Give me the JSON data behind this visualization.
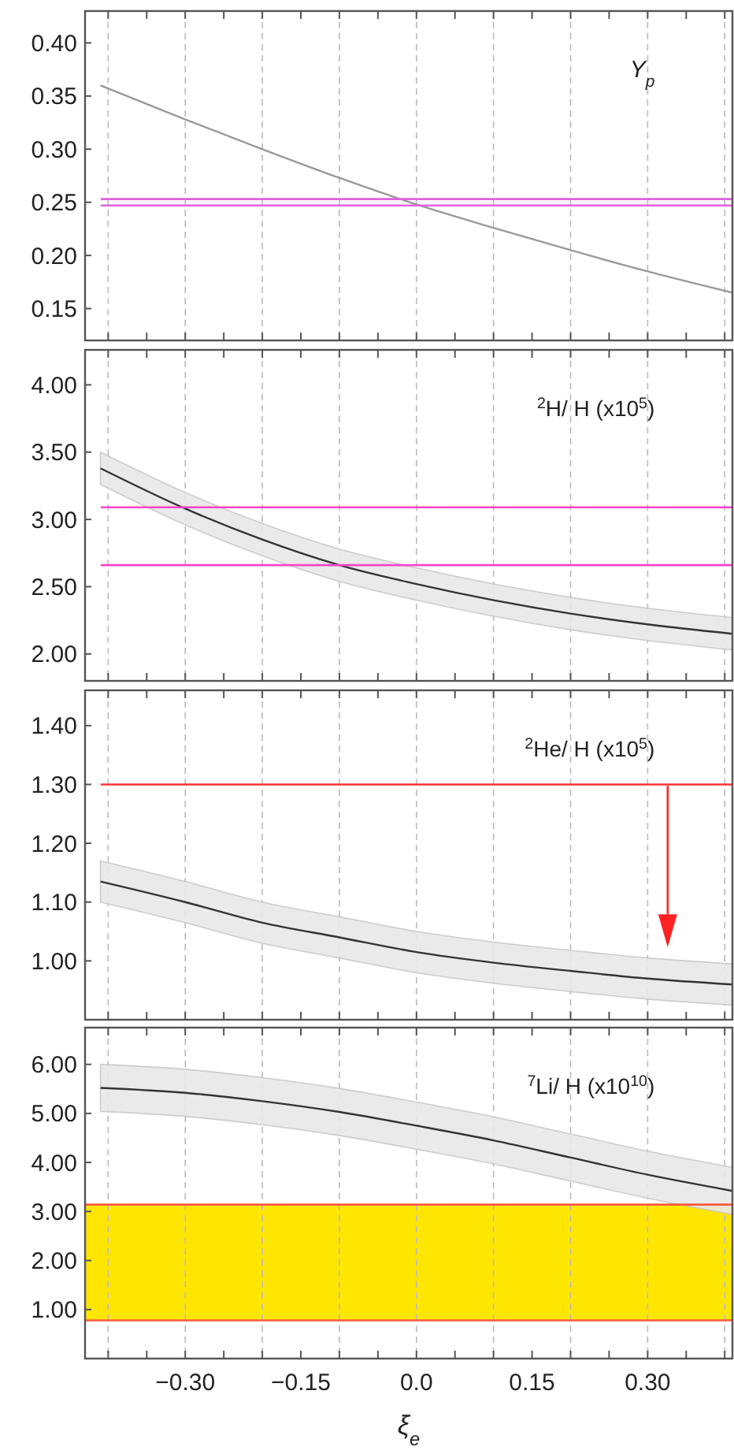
{
  "chart_data": [
    {
      "type": "line",
      "annotations": [
        "Y$_{p}$"
      ],
      "x": [
        -0.41,
        -0.3,
        -0.2,
        -0.1,
        0,
        0.1,
        0.2,
        0.3,
        0.41
      ],
      "series": [
        {
          "color": "#999999",
          "values": [
            0.36,
            0.328,
            0.3,
            0.273,
            0.248,
            0.226,
            0.205,
            0.185,
            0.165
          ]
        }
      ],
      "ref_lines": [
        {
          "axis": "y",
          "value": 0.253,
          "color": "#e060e0"
        },
        {
          "axis": "y",
          "value": 0.247,
          "color": "#e060e0"
        }
      ],
      "xlim": [
        -0.43,
        0.41
      ],
      "ylim": [
        0.12,
        0.43
      ],
      "xticks": [
        {
          "value": -0.4,
          "label": null
        },
        {
          "value": -0.35,
          "label": null
        },
        {
          "value": -0.3,
          "label": null
        },
        {
          "value": -0.25,
          "label": null
        },
        {
          "value": -0.2,
          "label": null
        },
        {
          "value": -0.15,
          "label": null
        },
        {
          "value": -0.1,
          "label": null
        },
        {
          "value": -0.05,
          "label": null
        },
        {
          "value": 0,
          "label": null
        },
        {
          "value": 0.05,
          "label": null
        },
        {
          "value": 0.1,
          "label": null
        },
        {
          "value": 0.15,
          "label": null
        },
        {
          "value": 0.2,
          "label": null
        },
        {
          "value": 0.25,
          "label": null
        },
        {
          "value": 0.3,
          "label": null
        },
        {
          "value": 0.35,
          "label": null
        },
        {
          "value": 0.4,
          "label": null
        }
      ],
      "yticks": [
        {
          "value": 0.15,
          "label": "0.15"
        },
        {
          "value": 0.2,
          "label": "0.20"
        },
        {
          "value": 0.25,
          "label": "0.25"
        },
        {
          "value": 0.3,
          "label": "0.30"
        },
        {
          "value": 0.35,
          "label": "0.35"
        },
        {
          "value": 0.4,
          "label": "0.40"
        }
      ],
      "grid": "x",
      "tick_labels": "y"
    },
    {
      "type": "line",
      "annotations": [
        "$^{2}$H/ H (x10$^{5}$)"
      ],
      "x": [
        -0.41,
        -0.3,
        -0.2,
        -0.1,
        0,
        0.1,
        0.2,
        0.3,
        0.41
      ],
      "series": [
        {
          "color": "#333333",
          "values": [
            3.38,
            3.08,
            2.85,
            2.66,
            2.52,
            2.4,
            2.3,
            2.22,
            2.15
          ],
          "lower": [
            3.26,
            2.96,
            2.73,
            2.54,
            2.4,
            2.28,
            2.18,
            2.1,
            2.03
          ],
          "upper": [
            3.5,
            3.2,
            2.97,
            2.78,
            2.64,
            2.52,
            2.42,
            2.34,
            2.27
          ]
        }
      ],
      "ref_lines": [
        {
          "axis": "y",
          "value": 3.09,
          "color": "#ff44cc"
        },
        {
          "axis": "y",
          "value": 2.66,
          "color": "#ff44cc"
        }
      ],
      "xlim": [
        -0.43,
        0.41
      ],
      "ylim": [
        1.8,
        4.26
      ],
      "xticks": [
        {
          "value": -0.4,
          "label": null
        },
        {
          "value": -0.35,
          "label": null
        },
        {
          "value": -0.3,
          "label": null
        },
        {
          "value": -0.25,
          "label": null
        },
        {
          "value": -0.2,
          "label": null
        },
        {
          "value": -0.15,
          "label": null
        },
        {
          "value": -0.1,
          "label": null
        },
        {
          "value": -0.05,
          "label": null
        },
        {
          "value": 0,
          "label": null
        },
        {
          "value": 0.05,
          "label": null
        },
        {
          "value": 0.1,
          "label": null
        },
        {
          "value": 0.15,
          "label": null
        },
        {
          "value": 0.2,
          "label": null
        },
        {
          "value": 0.25,
          "label": null
        },
        {
          "value": 0.3,
          "label": null
        },
        {
          "value": 0.35,
          "label": null
        },
        {
          "value": 0.4,
          "label": null
        }
      ],
      "yticks": [
        {
          "value": 2,
          "label": "2.00"
        },
        {
          "value": 2.5,
          "label": "2.50"
        },
        {
          "value": 3,
          "label": "3.00"
        },
        {
          "value": 3.5,
          "label": "3.50"
        },
        {
          "value": 4,
          "label": "4.00"
        }
      ],
      "grid": "x",
      "tick_labels": "y"
    },
    {
      "type": "line",
      "annotations": [
        "$^{2}$He/ H (x10$^{5}$)"
      ],
      "x": [
        -0.41,
        -0.3,
        -0.2,
        -0.1,
        0,
        0.1,
        0.2,
        0.3,
        0.41
      ],
      "series": [
        {
          "color": "#333333",
          "values": [
            1.135,
            1.1,
            1.065,
            1.04,
            1.015,
            0.997,
            0.983,
            0.97,
            0.96
          ],
          "lower": [
            1.1,
            1.065,
            1.03,
            1.005,
            0.98,
            0.962,
            0.948,
            0.935,
            0.925
          ],
          "upper": [
            1.17,
            1.135,
            1.1,
            1.075,
            1.05,
            1.032,
            1.018,
            1.005,
            0.995
          ]
        }
      ],
      "ref_lines": [
        {
          "axis": "y",
          "value": 1.3,
          "color": "#ff3333"
        }
      ],
      "xlim": [
        -0.43,
        0.41
      ],
      "ylim": [
        0.9,
        1.46
      ],
      "xticks": [
        {
          "value": -0.4,
          "label": null
        },
        {
          "value": -0.35,
          "label": null
        },
        {
          "value": -0.3,
          "label": null
        },
        {
          "value": -0.25,
          "label": null
        },
        {
          "value": -0.2,
          "label": null
        },
        {
          "value": -0.15,
          "label": null
        },
        {
          "value": -0.1,
          "label": null
        },
        {
          "value": -0.05,
          "label": null
        },
        {
          "value": 0,
          "label": null
        },
        {
          "value": 0.05,
          "label": null
        },
        {
          "value": 0.1,
          "label": null
        },
        {
          "value": 0.15,
          "label": null
        },
        {
          "value": 0.2,
          "label": null
        },
        {
          "value": 0.25,
          "label": null
        },
        {
          "value": 0.3,
          "label": null
        },
        {
          "value": 0.35,
          "label": null
        },
        {
          "value": 0.4,
          "label": null
        }
      ],
      "yticks": [
        {
          "value": 1,
          "label": "1.00"
        },
        {
          "value": 1.1,
          "label": "1.10"
        },
        {
          "value": 1.2,
          "label": "1.20"
        },
        {
          "value": 1.3,
          "label": "1.30"
        },
        {
          "value": 1.4,
          "label": "1.40"
        }
      ],
      "grid": "x",
      "tick_labels": "y"
    },
    {
      "type": "line",
      "annotations": [
        "$^{7}$Li/ H (x10$^{10}$)"
      ],
      "xlabel": "ξ$_{e}$",
      "x": [
        -0.41,
        -0.3,
        -0.2,
        -0.1,
        0,
        0.1,
        0.2,
        0.3,
        0.41
      ],
      "series": [
        {
          "color": "#333333",
          "values": [
            5.52,
            5.42,
            5.25,
            5.03,
            4.75,
            4.45,
            4.1,
            3.75,
            3.42
          ],
          "lower": [
            5.04,
            4.94,
            4.77,
            4.55,
            4.27,
            3.97,
            3.62,
            3.27,
            2.94
          ],
          "upper": [
            6,
            5.9,
            5.73,
            5.51,
            5.23,
            4.93,
            4.58,
            4.23,
            3.9
          ]
        }
      ],
      "bands": [
        {
          "axis": "y",
          "from": 0.78,
          "to": 3.14,
          "color": "#ffe600"
        }
      ],
      "ref_lines": [
        {
          "axis": "y",
          "value": 3.14,
          "color": "#ff5a3c"
        },
        {
          "axis": "y",
          "value": 0.78,
          "color": "#ff5a3c"
        }
      ],
      "xlim": [
        -0.43,
        0.41
      ],
      "ylim": [
        0,
        6.75
      ],
      "xticks": [
        {
          "value": -0.4,
          "label": null
        },
        {
          "value": -0.35,
          "label": null
        },
        {
          "value": -0.3,
          "label": "−0.30"
        },
        {
          "value": -0.25,
          "label": null
        },
        {
          "value": -0.2,
          "label": null
        },
        {
          "value": -0.15,
          "label": "−0.15"
        },
        {
          "value": -0.1,
          "label": null
        },
        {
          "value": -0.05,
          "label": null
        },
        {
          "value": 0,
          "label": "0.0"
        },
        {
          "value": 0.05,
          "label": null
        },
        {
          "value": 0.1,
          "label": null
        },
        {
          "value": 0.15,
          "label": "0.15"
        },
        {
          "value": 0.2,
          "label": null
        },
        {
          "value": 0.25,
          "label": null
        },
        {
          "value": 0.3,
          "label": "0.30"
        },
        {
          "value": 0.35,
          "label": null
        },
        {
          "value": 0.4,
          "label": null
        }
      ],
      "yticks": [
        {
          "value": 1,
          "label": "1.00"
        },
        {
          "value": 2,
          "label": "2.00"
        },
        {
          "value": 3,
          "label": "3.00"
        },
        {
          "value": 4,
          "label": "4.00"
        },
        {
          "value": 5,
          "label": "5.00"
        },
        {
          "value": 6,
          "label": "6.00"
        }
      ],
      "grid": "x"
    }
  ]
}
